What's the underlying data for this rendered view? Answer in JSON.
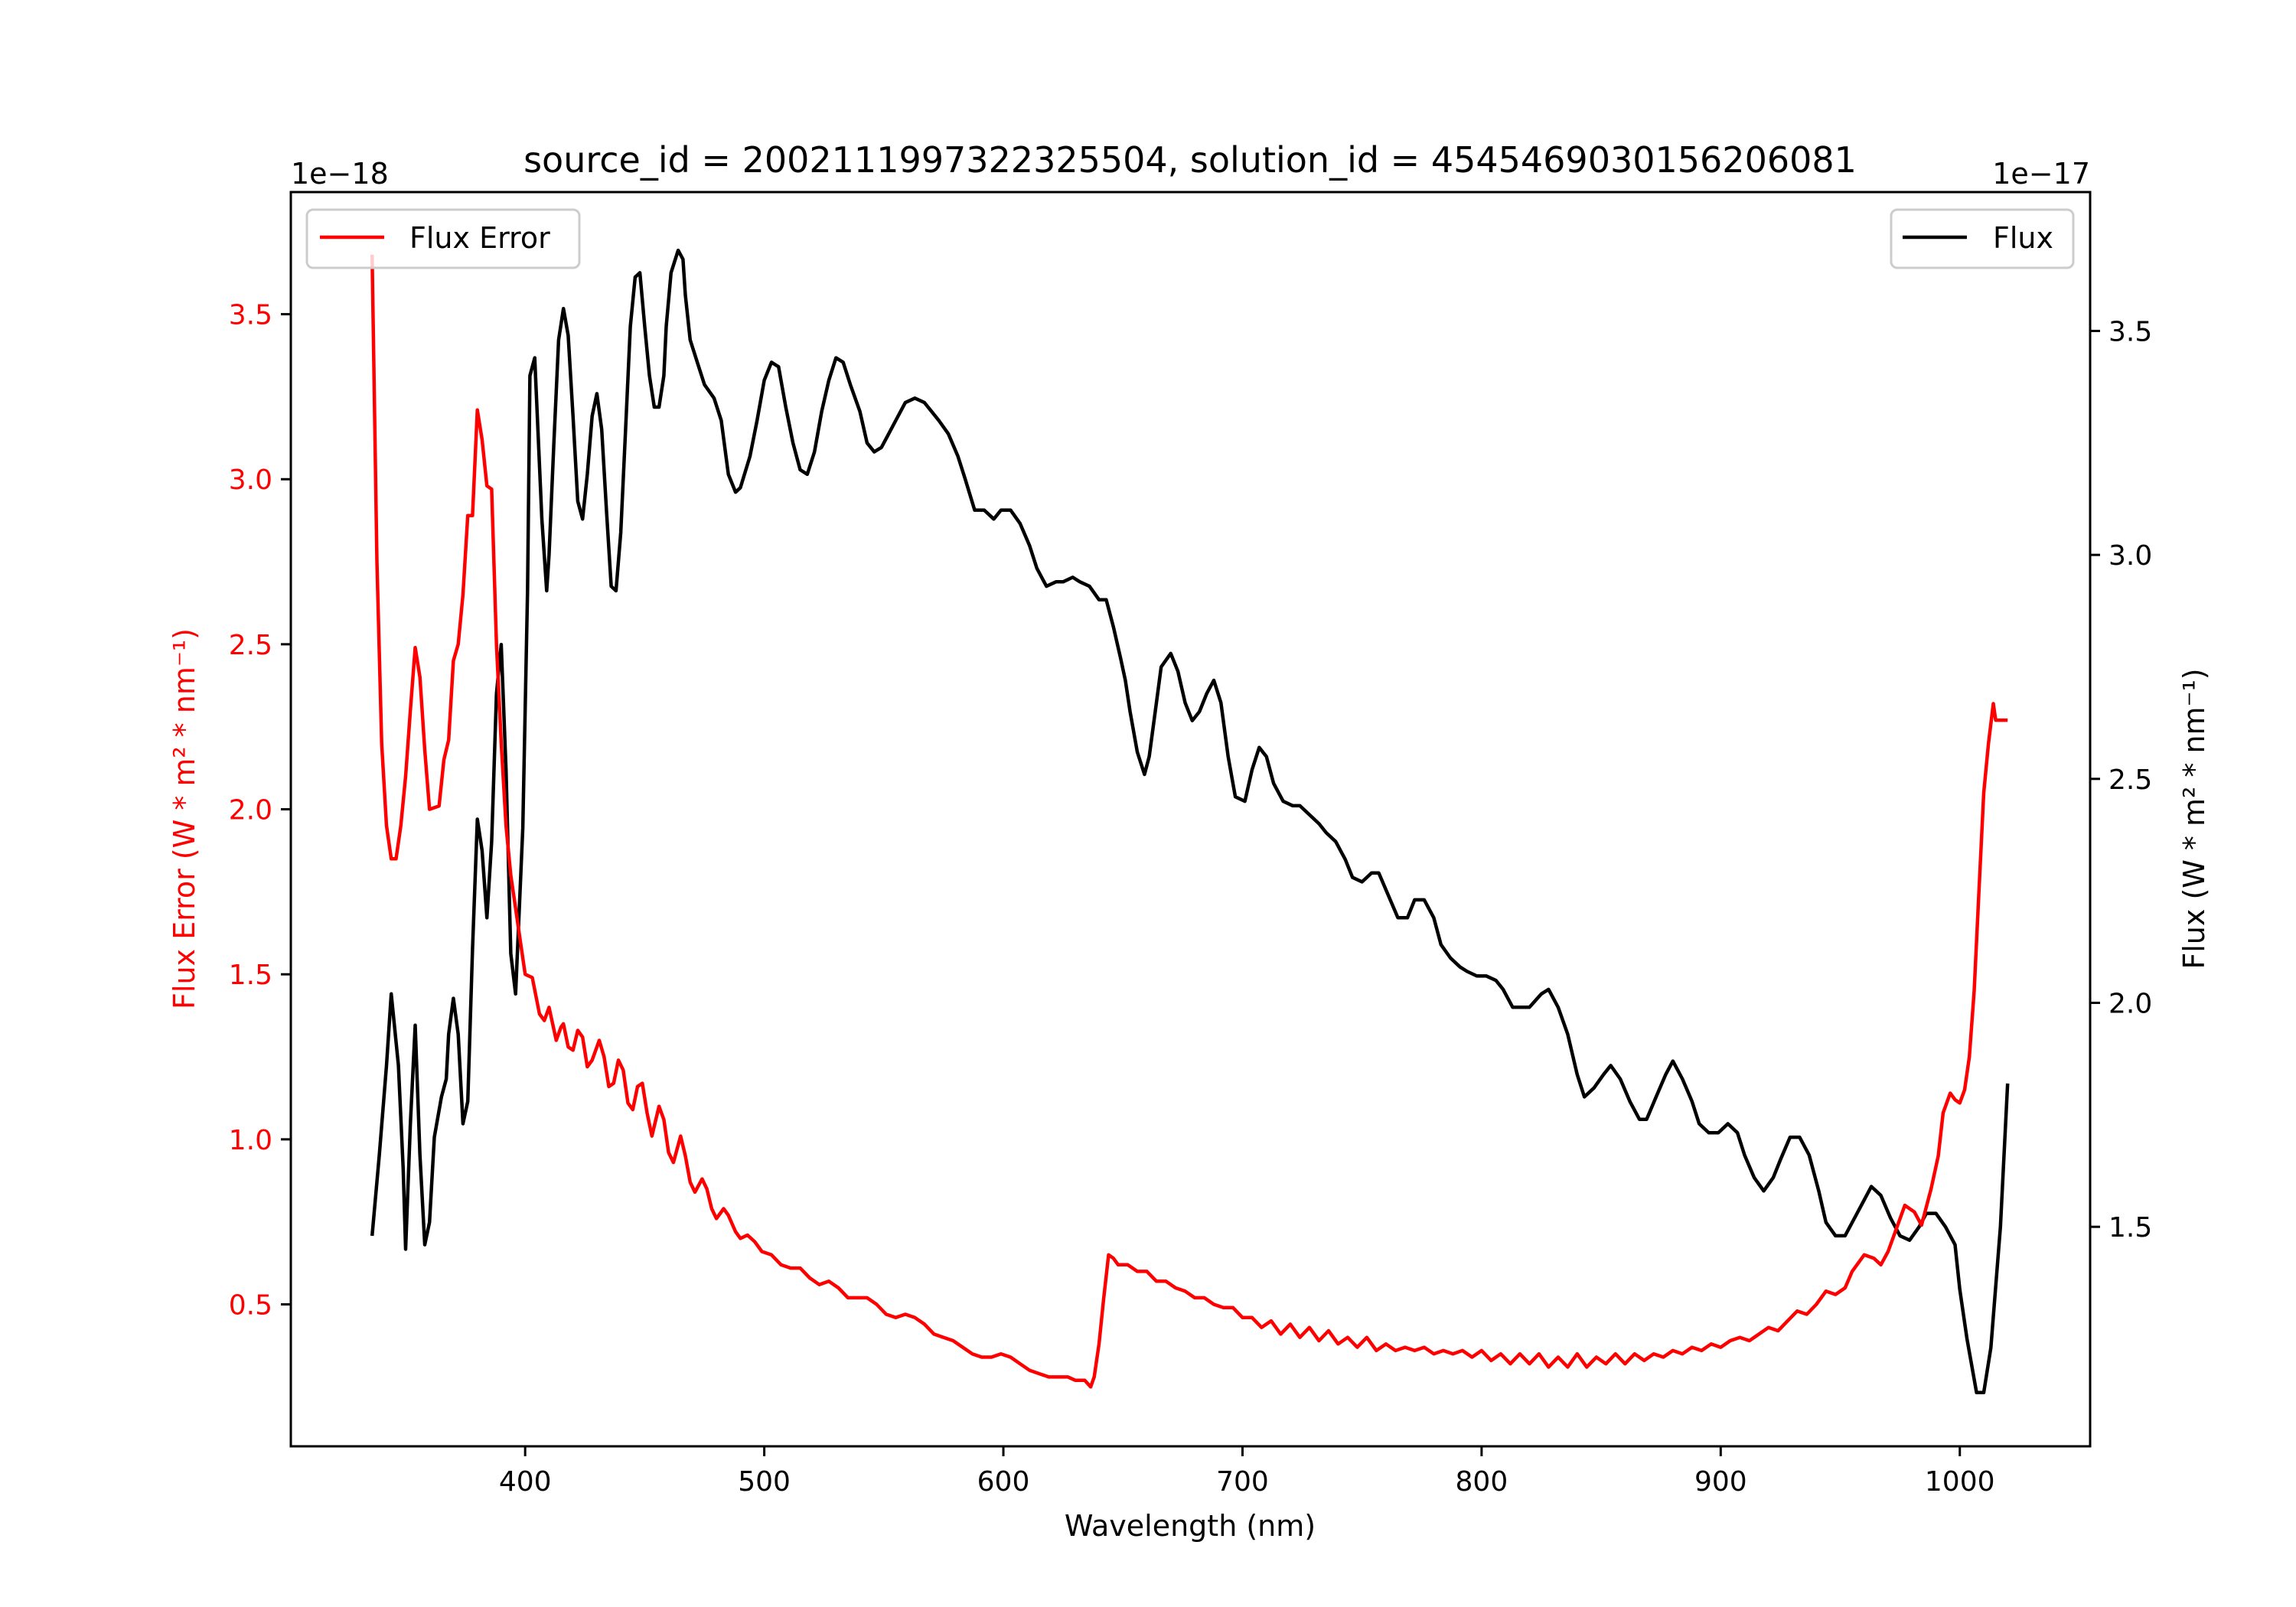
{
  "chart_data": {
    "type": "line",
    "title": "source_id = 2002111997322325504, solution_id = 4545469030156206081",
    "xlabel": "Wavelength (nm)",
    "xlim": [
      302,
      1054.5
    ],
    "xticks": [
      400,
      500,
      600,
      700,
      800,
      900,
      1000
    ],
    "axes": {
      "left": {
        "ylabel": "Flux Error (W * m² * nm⁻¹)",
        "offset_text": "1e−18",
        "ylim": [
          0.07,
          3.87
        ],
        "ticks": [
          0.5,
          1.0,
          1.5,
          2.0,
          2.5,
          3.0,
          3.5
        ],
        "color": "#ff0000"
      },
      "right": {
        "ylabel": "Flux (W * m² * nm⁻¹)",
        "offset_text": "1e−17",
        "ylim": [
          1.01,
          3.81
        ],
        "ticks": [
          1.5,
          2.0,
          2.5,
          3.0,
          3.5
        ],
        "color": "#000000"
      }
    },
    "legend_left": {
      "label": "Flux Error",
      "placement": "top-left"
    },
    "legend_right": {
      "label": "Flux",
      "placement": "top-right"
    },
    "series": [
      {
        "name": "Flux Error",
        "axis": "left",
        "color": "#ff0000",
        "x": [
          336,
          338,
          340,
          342,
          344,
          346,
          348,
          350,
          352,
          354,
          356,
          358,
          360,
          364,
          366,
          368,
          370,
          372,
          374,
          376,
          378,
          380,
          382,
          384,
          386,
          388,
          390,
          392,
          394,
          396,
          398,
          400,
          403,
          406,
          408,
          410,
          413,
          415,
          416,
          418,
          420,
          422,
          424,
          426,
          428,
          431,
          433,
          435,
          437,
          439,
          441,
          443,
          445,
          447,
          449,
          451,
          453,
          456,
          458,
          460,
          462,
          465,
          467,
          469,
          471,
          474,
          476,
          478,
          480,
          483,
          485,
          488,
          490,
          493,
          496,
          499,
          503,
          507,
          511,
          515,
          519,
          523,
          527,
          531,
          535,
          539,
          543,
          547,
          551,
          555,
          559,
          563,
          567,
          571,
          575,
          579,
          583,
          587,
          591,
          595,
          599,
          603,
          607,
          611,
          615,
          619,
          623,
          627,
          630,
          634,
          636.5,
          638,
          640,
          642,
          644,
          646,
          648,
          652,
          656,
          660,
          664,
          668,
          672,
          676,
          680,
          684,
          688,
          692,
          696,
          700,
          704,
          708,
          712,
          716,
          720,
          724,
          728,
          732,
          736,
          740,
          744,
          748,
          752,
          756,
          760,
          764,
          768,
          772,
          776,
          780,
          784,
          788,
          792,
          796,
          800,
          804,
          808,
          812,
          816,
          820,
          824,
          828,
          832,
          836,
          840,
          844,
          848,
          852,
          856,
          860,
          864,
          868,
          872,
          876,
          880,
          884,
          888,
          892,
          896,
          900,
          904,
          908,
          912,
          916,
          920,
          924,
          928,
          932,
          936,
          940,
          944,
          948,
          952,
          955,
          960,
          964,
          967,
          970,
          973,
          977,
          981,
          984,
          988,
          991,
          993,
          996,
          998,
          1000,
          1002,
          1004,
          1006,
          1008,
          1010,
          1012,
          1014,
          1015,
          1017,
          1020
        ],
        "y": [
          3.68,
          2.75,
          2.2,
          1.95,
          1.85,
          1.85,
          1.95,
          2.1,
          2.3,
          2.49,
          2.4,
          2.18,
          2.0,
          2.01,
          2.15,
          2.21,
          2.45,
          2.5,
          2.65,
          2.89,
          2.89,
          3.21,
          3.12,
          2.98,
          2.97,
          2.5,
          2.2,
          1.95,
          1.8,
          1.7,
          1.6,
          1.5,
          1.49,
          1.38,
          1.36,
          1.4,
          1.3,
          1.34,
          1.35,
          1.28,
          1.27,
          1.33,
          1.31,
          1.22,
          1.24,
          1.3,
          1.25,
          1.16,
          1.17,
          1.24,
          1.21,
          1.11,
          1.09,
          1.16,
          1.17,
          1.08,
          1.01,
          1.1,
          1.06,
          0.96,
          0.93,
          1.01,
          0.95,
          0.87,
          0.84,
          0.88,
          0.85,
          0.79,
          0.76,
          0.79,
          0.77,
          0.72,
          0.7,
          0.71,
          0.69,
          0.66,
          0.65,
          0.62,
          0.61,
          0.61,
          0.58,
          0.56,
          0.57,
          0.55,
          0.52,
          0.52,
          0.52,
          0.5,
          0.47,
          0.46,
          0.47,
          0.46,
          0.44,
          0.41,
          0.4,
          0.39,
          0.37,
          0.35,
          0.34,
          0.34,
          0.35,
          0.34,
          0.32,
          0.3,
          0.29,
          0.28,
          0.28,
          0.28,
          0.27,
          0.27,
          0.25,
          0.28,
          0.38,
          0.52,
          0.65,
          0.64,
          0.62,
          0.62,
          0.6,
          0.6,
          0.57,
          0.57,
          0.55,
          0.54,
          0.52,
          0.52,
          0.5,
          0.49,
          0.49,
          0.46,
          0.46,
          0.43,
          0.45,
          0.41,
          0.44,
          0.4,
          0.43,
          0.39,
          0.42,
          0.38,
          0.4,
          0.37,
          0.4,
          0.36,
          0.38,
          0.36,
          0.37,
          0.36,
          0.37,
          0.35,
          0.36,
          0.35,
          0.36,
          0.34,
          0.36,
          0.33,
          0.35,
          0.32,
          0.35,
          0.32,
          0.35,
          0.31,
          0.34,
          0.31,
          0.35,
          0.31,
          0.34,
          0.32,
          0.35,
          0.32,
          0.35,
          0.33,
          0.35,
          0.34,
          0.36,
          0.35,
          0.37,
          0.36,
          0.38,
          0.37,
          0.39,
          0.4,
          0.39,
          0.41,
          0.43,
          0.42,
          0.45,
          0.48,
          0.47,
          0.5,
          0.54,
          0.53,
          0.55,
          0.6,
          0.65,
          0.64,
          0.62,
          0.66,
          0.72,
          0.8,
          0.78,
          0.74,
          0.85,
          0.95,
          1.08,
          1.14,
          1.12,
          1.11,
          1.15,
          1.25,
          1.45,
          1.75,
          2.05,
          2.2,
          2.32,
          2.27,
          2.27,
          2.27
        ],
        "_note": ""
      },
      {
        "name": "Flux",
        "axis": "right",
        "color": "#000000",
        "x": [
          336,
          339,
          342,
          344,
          347,
          349,
          350,
          352,
          354,
          356,
          358,
          360,
          362,
          365,
          367,
          368,
          370,
          372,
          374,
          376,
          378,
          380,
          382,
          384,
          386,
          388,
          390,
          392,
          394,
          396,
          399,
          401,
          402,
          404,
          407,
          409,
          410,
          412,
          414,
          416,
          418,
          420,
          422,
          424,
          426,
          428,
          430,
          432,
          434,
          436,
          438,
          440,
          442,
          444,
          446,
          448,
          450,
          452,
          454,
          456,
          458,
          459,
          461,
          464,
          466,
          467,
          469,
          472,
          475,
          479,
          482,
          485,
          488,
          490,
          494,
          497,
          500,
          503,
          506,
          509,
          512,
          515,
          518,
          521,
          524,
          527,
          530,
          533,
          536,
          540,
          543,
          546,
          549,
          552,
          555,
          559,
          563,
          567,
          570,
          573,
          577,
          581,
          584,
          588,
          592,
          596,
          599,
          603,
          607,
          611,
          614,
          618,
          622,
          625,
          629,
          632,
          636,
          640,
          643,
          646,
          649,
          651,
          653,
          656,
          659,
          661,
          664,
          666,
          670,
          673,
          676,
          679,
          682,
          685,
          688,
          691,
          694,
          697,
          701,
          704,
          707,
          710,
          713,
          717,
          721,
          724,
          728,
          732,
          735,
          739,
          743,
          746,
          750,
          754,
          757,
          761,
          765,
          769,
          772,
          776,
          780,
          783,
          787,
          791,
          794,
          798,
          802,
          806,
          809,
          813,
          817,
          820,
          825,
          828,
          832,
          836,
          840,
          843,
          847,
          851,
          854,
          858,
          862,
          866,
          869,
          873,
          877,
          880,
          884,
          888,
          891,
          895,
          899,
          903,
          907,
          910,
          914,
          918,
          922,
          925,
          929,
          933,
          937,
          941,
          944,
          948,
          952,
          956,
          960,
          963,
          967,
          971,
          975,
          979,
          983,
          986,
          990,
          994,
          998,
          1000,
          1003,
          1007,
          1010,
          1013,
          1017,
          1020
        ],
        "y": [
          1.48,
          1.66,
          1.86,
          2.02,
          1.86,
          1.63,
          1.45,
          1.73,
          1.95,
          1.66,
          1.46,
          1.51,
          1.7,
          1.79,
          1.83,
          1.93,
          2.01,
          1.93,
          1.73,
          1.78,
          2.12,
          2.41,
          2.34,
          2.19,
          2.36,
          2.69,
          2.8,
          2.52,
          2.11,
          2.02,
          2.39,
          2.92,
          3.4,
          3.44,
          3.08,
          2.92,
          3.0,
          3.25,
          3.48,
          3.55,
          3.49,
          3.31,
          3.12,
          3.08,
          3.18,
          3.31,
          3.36,
          3.28,
          3.1,
          2.93,
          2.92,
          3.05,
          3.28,
          3.51,
          3.62,
          3.63,
          3.51,
          3.4,
          3.33,
          3.33,
          3.4,
          3.51,
          3.63,
          3.68,
          3.66,
          3.58,
          3.48,
          3.43,
          3.38,
          3.35,
          3.3,
          3.18,
          3.14,
          3.15,
          3.22,
          3.3,
          3.39,
          3.43,
          3.42,
          3.33,
          3.25,
          3.19,
          3.18,
          3.23,
          3.32,
          3.39,
          3.44,
          3.43,
          3.38,
          3.32,
          3.25,
          3.23,
          3.24,
          3.27,
          3.3,
          3.34,
          3.35,
          3.34,
          3.32,
          3.3,
          3.27,
          3.22,
          3.17,
          3.1,
          3.1,
          3.08,
          3.1,
          3.1,
          3.07,
          3.02,
          2.97,
          2.93,
          2.94,
          2.94,
          2.95,
          2.94,
          2.93,
          2.9,
          2.9,
          2.84,
          2.77,
          2.72,
          2.65,
          2.56,
          2.51,
          2.55,
          2.67,
          2.75,
          2.78,
          2.74,
          2.67,
          2.63,
          2.65,
          2.69,
          2.72,
          2.67,
          2.55,
          2.46,
          2.45,
          2.52,
          2.57,
          2.55,
          2.49,
          2.45,
          2.44,
          2.44,
          2.42,
          2.4,
          2.38,
          2.36,
          2.32,
          2.28,
          2.27,
          2.29,
          2.29,
          2.24,
          2.19,
          2.19,
          2.23,
          2.23,
          2.19,
          2.13,
          2.1,
          2.08,
          2.07,
          2.06,
          2.06,
          2.05,
          2.03,
          1.99,
          1.99,
          1.99,
          2.02,
          2.03,
          1.99,
          1.93,
          1.84,
          1.79,
          1.81,
          1.84,
          1.86,
          1.83,
          1.78,
          1.74,
          1.74,
          1.79,
          1.84,
          1.87,
          1.83,
          1.78,
          1.73,
          1.71,
          1.71,
          1.73,
          1.71,
          1.66,
          1.61,
          1.58,
          1.61,
          1.65,
          1.7,
          1.7,
          1.66,
          1.58,
          1.51,
          1.48,
          1.48,
          1.52,
          1.56,
          1.59,
          1.57,
          1.52,
          1.48,
          1.47,
          1.5,
          1.53,
          1.53,
          1.5,
          1.46,
          1.36,
          1.25,
          1.13,
          1.13,
          1.23,
          1.5,
          1.82
        ]
      }
    ]
  }
}
